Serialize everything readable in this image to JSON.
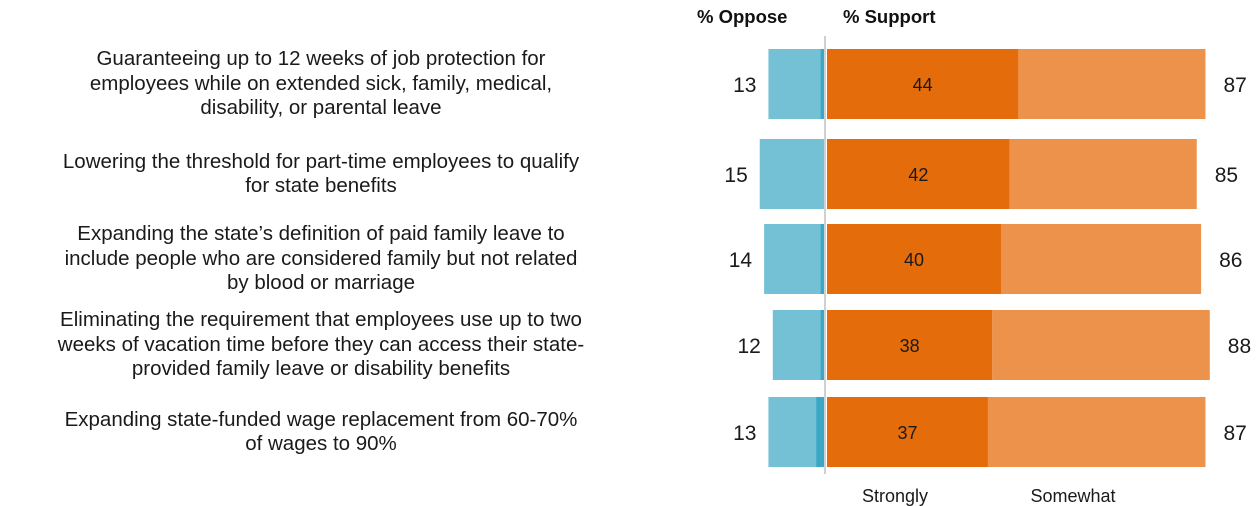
{
  "chart_data": {
    "type": "bar",
    "orientation": "horizontal",
    "stacked": "diverging",
    "header": {
      "oppose": "% Oppose",
      "support": "% Support"
    },
    "categories": [
      "Guaranteeing up to 12 weeks of job protection for employees while on extended sick, family, medical, disability, or parental leave",
      "Lowering the threshold for part-time employees to qualify for state benefits",
      "Expanding the state’s definition of paid family leave to include people who are considered family but not related by blood or marriage",
      "Eliminating the requirement that employees use up to two weeks of vacation time before they can access their state-provided family leave or disability benefits",
      "Expanding state-funded wage replacement from 60-70% of wages to 90%"
    ],
    "category_lines": [
      [
        "Guaranteeing up to 12 weeks of job protection for",
        "employees while on extended sick, family, medical,",
        "disability, or parental leave"
      ],
      [
        "Lowering the threshold for part-time employees to qualify",
        "for state benefits"
      ],
      [
        "Expanding the state’s definition of paid family leave to",
        "include people who are considered family but not related",
        "by blood or marriage"
      ],
      [
        "Eliminating the requirement that employees use up to two",
        "weeks of vacation time before they can access their state-",
        "provided family leave or disability benefits"
      ],
      [
        "Expanding state-funded wage replacement from 60-70%",
        "of wages to 90%"
      ]
    ],
    "oppose_total": [
      13,
      15,
      14,
      12,
      13
    ],
    "oppose_strongly": [
      1,
      0,
      1,
      1,
      2
    ],
    "series": [
      {
        "name": "Strongly",
        "values": [
          44,
          42,
          40,
          38,
          37
        ]
      },
      {
        "name": "Somewhat",
        "values": [
          43,
          43,
          46,
          50,
          50
        ]
      }
    ],
    "support_total": [
      87,
      85,
      86,
      88,
      87
    ],
    "xlim": [
      -15,
      88
    ],
    "grid": false,
    "legend": "bottom",
    "colors": {
      "oppose": "#74c1d6",
      "oppose_strongly": "#3aa7c6",
      "support_strongly": "#e46c0a",
      "support_somewhat": "#ec924a",
      "zero_line": "#d0d0d0",
      "text": "#1a1a1a"
    }
  }
}
